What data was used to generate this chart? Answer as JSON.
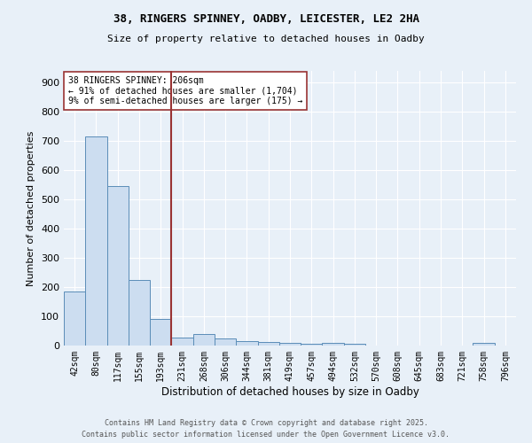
{
  "title1": "38, RINGERS SPINNEY, OADBY, LEICESTER, LE2 2HA",
  "title2": "Size of property relative to detached houses in Oadby",
  "xlabel": "Distribution of detached houses by size in Oadby",
  "ylabel": "Number of detached properties",
  "categories": [
    "42sqm",
    "80sqm",
    "117sqm",
    "155sqm",
    "193sqm",
    "231sqm",
    "268sqm",
    "306sqm",
    "344sqm",
    "381sqm",
    "419sqm",
    "457sqm",
    "494sqm",
    "532sqm",
    "570sqm",
    "608sqm",
    "645sqm",
    "683sqm",
    "721sqm",
    "758sqm",
    "796sqm"
  ],
  "values": [
    185,
    715,
    545,
    225,
    90,
    28,
    38,
    25,
    15,
    11,
    9,
    5,
    8,
    5,
    0,
    0,
    0,
    0,
    0,
    8,
    0
  ],
  "bar_color": "#ccddf0",
  "bar_edge_color": "#5b8db8",
  "bg_color": "#e8f0f8",
  "grid_color": "#ffffff",
  "vline_x": 4.5,
  "vline_color": "#993333",
  "annotation_text": "38 RINGERS SPINNEY: 206sqm\n← 91% of detached houses are smaller (1,704)\n9% of semi-detached houses are larger (175) →",
  "annotation_box_color": "#ffffff",
  "annotation_box_edge": "#993333",
  "footer1": "Contains HM Land Registry data © Crown copyright and database right 2025.",
  "footer2": "Contains public sector information licensed under the Open Government Licence v3.0.",
  "ylim": [
    0,
    940
  ],
  "yticks": [
    0,
    100,
    200,
    300,
    400,
    500,
    600,
    700,
    800,
    900
  ]
}
